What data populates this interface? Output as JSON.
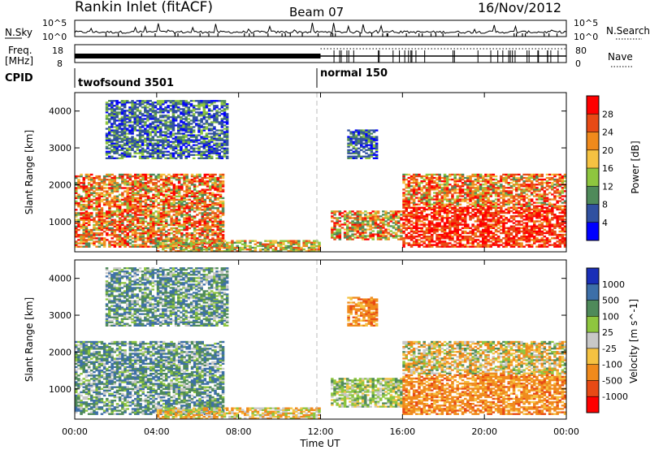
{
  "header": {
    "station": "Rankin Inlet (fitACF)",
    "beam": "Beam 07",
    "date": "16/Nov/2012"
  },
  "aux_labels": {
    "nsky": "N.Sky",
    "nsky_tick_top": "10^5",
    "nsky_tick_bottom": "10^0",
    "nsearch": "N.Search",
    "nsearch_tick_top": "10^5",
    "nsearch_tick_bottom": "10^0",
    "freq": "Freq.",
    "freq_unit": "[MHz]",
    "freq_tick_top": "18",
    "freq_tick_bottom": "8",
    "nave_tick_top": "80",
    "nave_tick_bottom": "0",
    "nave": "Nave",
    "cpid": "CPID",
    "cpid_mode_1": "twofsound 3501",
    "cpid_mode_2": "normal 150"
  },
  "colors": {
    "power": [
      "#0000ff",
      "#3050a0",
      "#4f8a5a",
      "#8ec63f",
      "#f5c242",
      "#f08a1c",
      "#e84a15",
      "#ff0000"
    ],
    "velocity": [
      "#1a2fb8",
      "#3d6fa8",
      "#4f8a5a",
      "#8ec63f",
      "#c8c8c8",
      "#f5c242",
      "#f08a1c",
      "#e84a15",
      "#ff0000"
    ],
    "dashed_line": "#bbbbbb"
  },
  "chart_data": [
    {
      "type": "heatmap",
      "name": "power",
      "ylabel": "Slant Range [km]",
      "xlabel": "Time UT",
      "ylim": [
        180,
        4500
      ],
      "yticks": [
        "1000",
        "2000",
        "3000",
        "4000"
      ],
      "xticks": [
        "00:00",
        "04:00",
        "08:00",
        "12:00",
        "16:00",
        "20:00",
        "00:00"
      ],
      "colorbar_label": "Power [dB]",
      "colorbar_ticks": [
        "4",
        "8",
        "12",
        "16",
        "20",
        "24",
        "28"
      ],
      "mode_change_ut": 12.0,
      "regions": [
        {
          "t0": 0.0,
          "t1": 7.3,
          "r0": 300,
          "r1": 2300,
          "level": "mixed_high"
        },
        {
          "t0": 4.0,
          "t1": 12.0,
          "r0": 180,
          "r1": 500,
          "level": "mid"
        },
        {
          "t0": 12.5,
          "t1": 16.0,
          "r0": 500,
          "r1": 1300,
          "level": "mixed"
        },
        {
          "t0": 16.0,
          "t1": 24.0,
          "r0": 300,
          "r1": 1400,
          "level": "high"
        },
        {
          "t0": 16.0,
          "t1": 24.0,
          "r0": 1400,
          "r1": 2300,
          "level": "mixed_high"
        },
        {
          "t0": 1.5,
          "t1": 7.5,
          "r0": 2700,
          "r1": 4300,
          "level": "low"
        },
        {
          "t0": 13.3,
          "t1": 14.8,
          "r0": 2700,
          "r1": 3500,
          "level": "low"
        }
      ]
    },
    {
      "type": "heatmap",
      "name": "velocity",
      "ylabel": "Slant Range [km]",
      "xlabel": "Time UT",
      "ylim": [
        180,
        4500
      ],
      "yticks": [
        "1000",
        "2000",
        "3000",
        "4000"
      ],
      "xticks": [
        "00:00",
        "04:00",
        "08:00",
        "12:00",
        "16:00",
        "20:00",
        "00:00"
      ],
      "colorbar_label": "Velocity [m s^-1]",
      "colorbar_ticks": [
        "1000",
        "500",
        "100",
        "25",
        "-25",
        "-100",
        "-500",
        "-1000"
      ],
      "mode_change_ut": 12.0,
      "regions": [
        {
          "t0": 0.0,
          "t1": 7.3,
          "r0": 300,
          "r1": 2300,
          "level": "toward"
        },
        {
          "t0": 4.0,
          "t1": 12.0,
          "r0": 180,
          "r1": 500,
          "level": "away_low"
        },
        {
          "t0": 12.5,
          "t1": 16.0,
          "r0": 500,
          "r1": 1300,
          "level": "toward_low"
        },
        {
          "t0": 16.0,
          "t1": 24.0,
          "r0": 300,
          "r1": 1400,
          "level": "away"
        },
        {
          "t0": 16.0,
          "t1": 24.0,
          "r0": 1400,
          "r1": 2300,
          "level": "mixed"
        },
        {
          "t0": 1.5,
          "t1": 7.5,
          "r0": 2700,
          "r1": 4300,
          "level": "toward"
        },
        {
          "t0": 13.3,
          "t1": 14.8,
          "r0": 2700,
          "r1": 3500,
          "level": "away"
        }
      ]
    }
  ]
}
